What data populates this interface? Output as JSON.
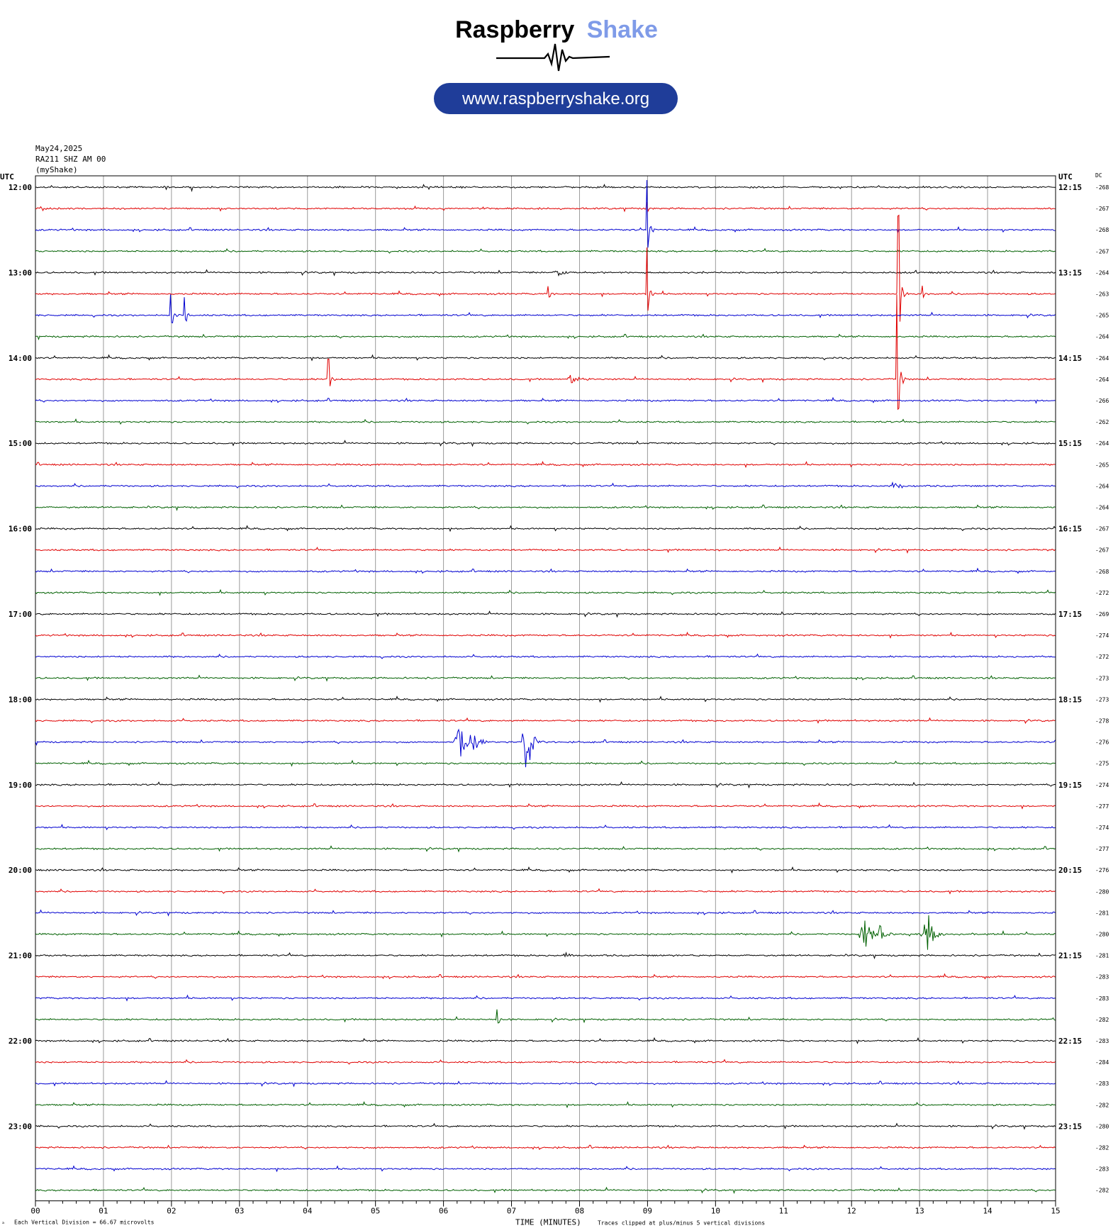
{
  "brand": {
    "name_part1": "Raspberry",
    "name_part2": "Shake",
    "url": "www.raspberryshake.org",
    "dark_color": "#000000",
    "accent_color": "#7f9be8",
    "pill_color": "#1f3d99"
  },
  "header": {
    "date": "May24,2025",
    "station": "RA211 SHZ AM 00",
    "network": "(myShake)"
  },
  "axes": {
    "left_title": "UTC",
    "right_title": "UTC",
    "dc_title": "DC",
    "xlabel": "TIME (MINUTES)",
    "x_ticks": [
      "00",
      "01",
      "02",
      "03",
      "04",
      "05",
      "06",
      "07",
      "08",
      "09",
      "10",
      "11",
      "12",
      "13",
      "14",
      "15"
    ]
  },
  "footer": {
    "division": "Each Vertical Division =   66.67 microvolts",
    "clip_note": "Traces clipped at plus/minus 5 vertical divisions",
    "mark": "ᵃ"
  },
  "colors": {
    "trace": [
      "#000000",
      "#e00000",
      "#0000d0",
      "#006000"
    ],
    "grid": "#9a9a9a"
  },
  "chart_data": {
    "type": "line",
    "title": "",
    "xlabel": "TIME (MINUTES)",
    "xlim": [
      0,
      15
    ],
    "rows": [
      {
        "start": "12:00",
        "end": "12:15",
        "dc": "-268",
        "color": "black"
      },
      {
        "start": "",
        "end": "",
        "dc": "-267",
        "color": "red"
      },
      {
        "start": "",
        "end": "",
        "dc": "-268",
        "color": "blue"
      },
      {
        "start": "",
        "end": "",
        "dc": "-267",
        "color": "green"
      },
      {
        "start": "13:00",
        "end": "13:15",
        "dc": "-264",
        "color": "black"
      },
      {
        "start": "",
        "end": "",
        "dc": "-263",
        "color": "red"
      },
      {
        "start": "",
        "end": "",
        "dc": "-265",
        "color": "blue"
      },
      {
        "start": "",
        "end": "",
        "dc": "-264",
        "color": "green"
      },
      {
        "start": "14:00",
        "end": "14:15",
        "dc": "-264",
        "color": "black"
      },
      {
        "start": "",
        "end": "",
        "dc": "-264",
        "color": "red"
      },
      {
        "start": "",
        "end": "",
        "dc": "-266",
        "color": "blue"
      },
      {
        "start": "",
        "end": "",
        "dc": "-262",
        "color": "green"
      },
      {
        "start": "15:00",
        "end": "15:15",
        "dc": "-264",
        "color": "black"
      },
      {
        "start": "",
        "end": "",
        "dc": "-265",
        "color": "red"
      },
      {
        "start": "",
        "end": "",
        "dc": "-264",
        "color": "blue"
      },
      {
        "start": "",
        "end": "",
        "dc": "-264",
        "color": "green"
      },
      {
        "start": "16:00",
        "end": "16:15",
        "dc": "-267",
        "color": "black"
      },
      {
        "start": "",
        "end": "",
        "dc": "-267",
        "color": "red"
      },
      {
        "start": "",
        "end": "",
        "dc": "-268",
        "color": "blue"
      },
      {
        "start": "",
        "end": "",
        "dc": "-272",
        "color": "green"
      },
      {
        "start": "17:00",
        "end": "17:15",
        "dc": "-269",
        "color": "black"
      },
      {
        "start": "",
        "end": "",
        "dc": "-274",
        "color": "red"
      },
      {
        "start": "",
        "end": "",
        "dc": "-272",
        "color": "blue"
      },
      {
        "start": "",
        "end": "",
        "dc": "-273",
        "color": "green"
      },
      {
        "start": "18:00",
        "end": "18:15",
        "dc": "-273",
        "color": "black"
      },
      {
        "start": "",
        "end": "",
        "dc": "-278",
        "color": "red"
      },
      {
        "start": "",
        "end": "",
        "dc": "-276",
        "color": "blue"
      },
      {
        "start": "",
        "end": "",
        "dc": "-275",
        "color": "green"
      },
      {
        "start": "19:00",
        "end": "19:15",
        "dc": "-274",
        "color": "black"
      },
      {
        "start": "",
        "end": "",
        "dc": "-277",
        "color": "red"
      },
      {
        "start": "",
        "end": "",
        "dc": "-274",
        "color": "blue"
      },
      {
        "start": "",
        "end": "",
        "dc": "-277",
        "color": "green"
      },
      {
        "start": "20:00",
        "end": "20:15",
        "dc": "-276",
        "color": "black"
      },
      {
        "start": "",
        "end": "",
        "dc": "-280",
        "color": "red"
      },
      {
        "start": "",
        "end": "",
        "dc": "-281",
        "color": "blue"
      },
      {
        "start": "",
        "end": "",
        "dc": "-280",
        "color": "green"
      },
      {
        "start": "21:00",
        "end": "21:15",
        "dc": "-281",
        "color": "black"
      },
      {
        "start": "",
        "end": "",
        "dc": "-283",
        "color": "red"
      },
      {
        "start": "",
        "end": "",
        "dc": "-283",
        "color": "blue"
      },
      {
        "start": "",
        "end": "",
        "dc": "-282",
        "color": "green"
      },
      {
        "start": "22:00",
        "end": "22:15",
        "dc": "-283",
        "color": "black"
      },
      {
        "start": "",
        "end": "",
        "dc": "-284",
        "color": "red"
      },
      {
        "start": "",
        "end": "",
        "dc": "-283",
        "color": "blue"
      },
      {
        "start": "",
        "end": "",
        "dc": "-282",
        "color": "green"
      },
      {
        "start": "23:00",
        "end": "23:15",
        "dc": "-280",
        "color": "black"
      },
      {
        "start": "",
        "end": "",
        "dc": "-282",
        "color": "red"
      },
      {
        "start": "",
        "end": "",
        "dc": "-283",
        "color": "blue"
      },
      {
        "start": "",
        "end": "",
        "dc": "-282",
        "color": "green"
      }
    ],
    "events": [
      {
        "row": 1,
        "minute": 9.0,
        "amp": 10,
        "kind": "spike"
      },
      {
        "row": 2,
        "minute": 9.0,
        "amp": 70,
        "kind": "spike"
      },
      {
        "row": 4,
        "minute": 7.65,
        "amp": 8,
        "kind": "burst"
      },
      {
        "row": 5,
        "minute": 9.0,
        "amp": 65,
        "kind": "spike"
      },
      {
        "row": 5,
        "minute": 7.55,
        "amp": 12,
        "kind": "spike"
      },
      {
        "row": 5,
        "minute": 12.7,
        "amp": 110,
        "kind": "spike"
      },
      {
        "row": 5,
        "minute": 13.05,
        "amp": 12,
        "kind": "spike"
      },
      {
        "row": 6,
        "minute": 2.0,
        "amp": 30,
        "kind": "spike"
      },
      {
        "row": 6,
        "minute": 2.2,
        "amp": 25,
        "kind": "spike"
      },
      {
        "row": 9,
        "minute": 4.32,
        "amp": 28,
        "kind": "spike"
      },
      {
        "row": 9,
        "minute": 7.85,
        "amp": 12,
        "kind": "burst"
      },
      {
        "row": 9,
        "minute": 12.68,
        "amp": 120,
        "kind": "spike"
      },
      {
        "row": 14,
        "minute": 12.6,
        "amp": 6,
        "kind": "burst"
      },
      {
        "row": 26,
        "minute": 6.2,
        "amp": 40,
        "kind": "burst"
      },
      {
        "row": 26,
        "minute": 6.4,
        "amp": 30,
        "kind": "burst"
      },
      {
        "row": 26,
        "minute": 7.2,
        "amp": 65,
        "kind": "burst"
      },
      {
        "row": 35,
        "minute": 12.15,
        "amp": 45,
        "kind": "burst"
      },
      {
        "row": 35,
        "minute": 12.4,
        "amp": 15,
        "kind": "burst"
      },
      {
        "row": 35,
        "minute": 13.1,
        "amp": 50,
        "kind": "burst"
      },
      {
        "row": 36,
        "minute": 7.8,
        "amp": 6,
        "kind": "burst"
      },
      {
        "row": 39,
        "minute": 6.8,
        "amp": 14,
        "kind": "spike"
      }
    ]
  }
}
